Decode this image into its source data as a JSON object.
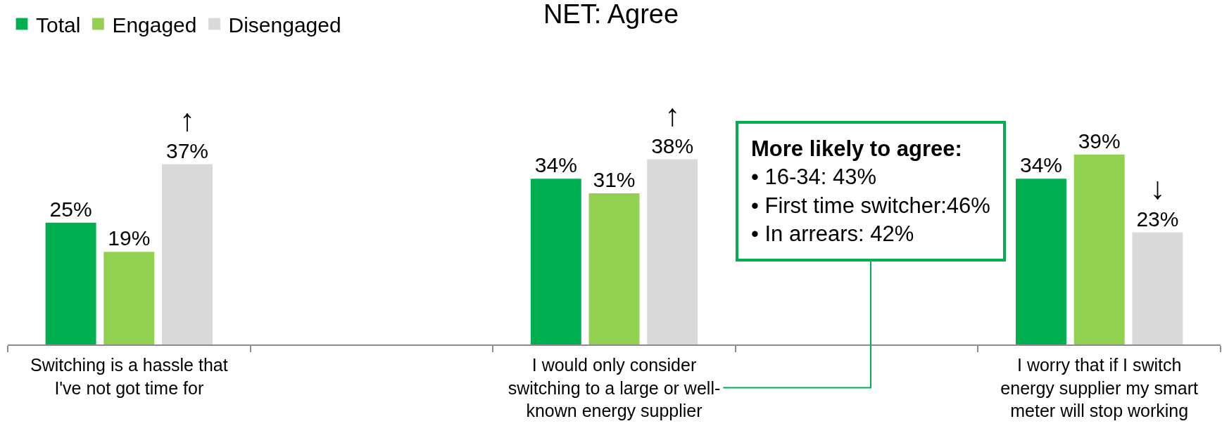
{
  "chart_data": {
    "type": "bar",
    "title": "NET: Agree",
    "categories": [
      "Switching is a hassle that I've not got time for",
      null,
      "I would only consider switching to a large or well-known energy supplier",
      null,
      "I worry that if I switch energy supplier my smart meter will stop working"
    ],
    "series": [
      {
        "name": "Total",
        "color": "#00b050",
        "values": [
          25,
          null,
          34,
          null,
          34
        ],
        "value_labels": [
          "25%",
          null,
          "34%",
          null,
          "34%"
        ]
      },
      {
        "name": "Engaged",
        "color": "#92d050",
        "values": [
          19,
          null,
          31,
          null,
          39
        ],
        "value_labels": [
          "19%",
          null,
          "31%",
          null,
          "39%"
        ]
      },
      {
        "name": "Disengaged",
        "color": "#d9d9d9",
        "values": [
          37,
          null,
          38,
          null,
          23
        ],
        "value_labels": [
          "↑\n37%",
          null,
          "↑\n38%",
          null,
          "↓\n23%"
        ]
      }
    ],
    "annotations": [
      "More likely to agree:\n• 16-34: 43%\n• First time switcher:46%\n• In arrears: 42%"
    ],
    "legend": "top left",
    "tick_labels": "x"
  }
}
